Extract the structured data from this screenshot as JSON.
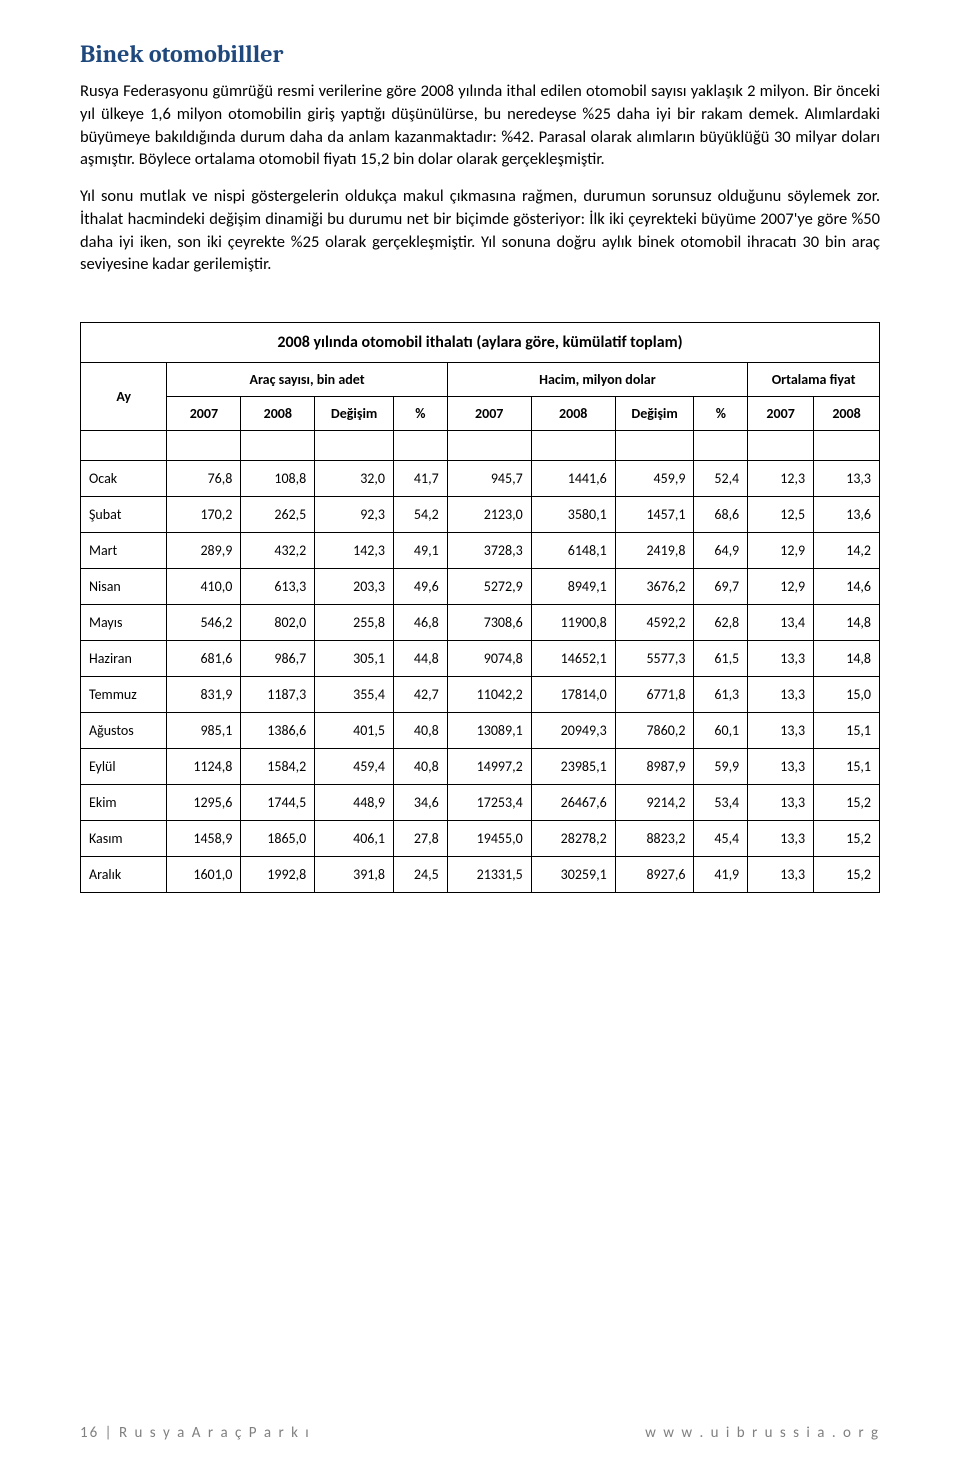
{
  "heading": "Binek otomobilller",
  "paragraphs": [
    "Rusya Federasyonu gümrüğü resmi verilerine göre 2008 yılında ithal edilen otomobil sayısı yaklaşık 2 milyon. Bir önceki yıl ülkeye 1,6 milyon otomobilin giriş yaptığı düşünülürse, bu neredeyse %25 daha iyi bir rakam demek. Alımlardaki büyümeye bakıldığında durum daha da anlam kazanmaktadır: %42. Parasal olarak alımların büyüklüğü 30 milyar doları aşmıştır. Böylece ortalama otomobil fiyatı 15,2 bin dolar olarak gerçekleşmiştir.",
    "Yıl sonu mutlak ve nispi göstergelerin oldukça makul çıkmasına rağmen, durumun sorunsuz olduğunu söylemek zor. İthalat hacmindeki değişim dinamiği bu durumu net bir biçimde gösteriyor: İlk iki çeyrekteki büyüme 2007'ye göre %50 daha iyi iken, son iki çeyrekte %25 olarak gerçekleşmiştir. Yıl sonuna doğru aylık binek otomobil ihracatı 30 bin araç seviyesine kadar gerilemiştir."
  ],
  "table": {
    "title": "2008 yılında otomobil ithalatı (aylara göre, kümülatif toplam)",
    "ay_label": "Ay",
    "groups": [
      "Araç sayısı, bin adet",
      "Hacim, milyon dolar",
      "Ortalama fiyat"
    ],
    "sub": [
      "2007",
      "2008",
      "Değişim",
      "%",
      "2007",
      "2008",
      "Değişim",
      "%",
      "2007",
      "2008"
    ],
    "rows": [
      {
        "m": "Ocak",
        "v": [
          "76,8",
          "108,8",
          "32,0",
          "41,7",
          "945,7",
          "1441,6",
          "459,9",
          "52,4",
          "12,3",
          "13,3"
        ]
      },
      {
        "m": "Şubat",
        "v": [
          "170,2",
          "262,5",
          "92,3",
          "54,2",
          "2123,0",
          "3580,1",
          "1457,1",
          "68,6",
          "12,5",
          "13,6"
        ]
      },
      {
        "m": "Mart",
        "v": [
          "289,9",
          "432,2",
          "142,3",
          "49,1",
          "3728,3",
          "6148,1",
          "2419,8",
          "64,9",
          "12,9",
          "14,2"
        ]
      },
      {
        "m": "Nisan",
        "v": [
          "410,0",
          "613,3",
          "203,3",
          "49,6",
          "5272,9",
          "8949,1",
          "3676,2",
          "69,7",
          "12,9",
          "14,6"
        ]
      },
      {
        "m": "Mayıs",
        "v": [
          "546,2",
          "802,0",
          "255,8",
          "46,8",
          "7308,6",
          "11900,8",
          "4592,2",
          "62,8",
          "13,4",
          "14,8"
        ]
      },
      {
        "m": "Haziran",
        "v": [
          "681,6",
          "986,7",
          "305,1",
          "44,8",
          "9074,8",
          "14652,1",
          "5577,3",
          "61,5",
          "13,3",
          "14,8"
        ]
      },
      {
        "m": "Temmuz",
        "v": [
          "831,9",
          "1187,3",
          "355,4",
          "42,7",
          "11042,2",
          "17814,0",
          "6771,8",
          "61,3",
          "13,3",
          "15,0"
        ]
      },
      {
        "m": "Ağustos",
        "v": [
          "985,1",
          "1386,6",
          "401,5",
          "40,8",
          "13089,1",
          "20949,3",
          "7860,2",
          "60,1",
          "13,3",
          "15,1"
        ]
      },
      {
        "m": "Eylül",
        "v": [
          "1124,8",
          "1584,2",
          "459,4",
          "40,8",
          "14997,2",
          "23985,1",
          "8987,9",
          "59,9",
          "13,3",
          "15,1"
        ]
      },
      {
        "m": "Ekim",
        "v": [
          "1295,6",
          "1744,5",
          "448,9",
          "34,6",
          "17253,4",
          "26467,6",
          "9214,2",
          "53,4",
          "13,3",
          "15,2"
        ]
      },
      {
        "m": "Kasım",
        "v": [
          "1458,9",
          "1865,0",
          "406,1",
          "27,8",
          "19455,0",
          "28278,2",
          "8823,2",
          "45,4",
          "13,3",
          "15,2"
        ]
      },
      {
        "m": "Aralık",
        "v": [
          "1601,0",
          "1992,8",
          "391,8",
          "24,5",
          "21331,5",
          "30259,1",
          "8927,6",
          "41,9",
          "13,3",
          "15,2"
        ]
      }
    ]
  },
  "footer": {
    "page_no": "16",
    "left": "R u s y a   A r a ç   P a r k ı",
    "right": "w w w . u i b r u s s i a . o r g"
  },
  "colors": {
    "heading": "#1f497d",
    "text": "#000000",
    "footer": "#808080",
    "border": "#000000",
    "background": "#ffffff"
  },
  "typography": {
    "heading_fontsize": 24,
    "body_fontsize": 16.5,
    "table_fontsize": 14,
    "footer_fontsize": 15
  }
}
